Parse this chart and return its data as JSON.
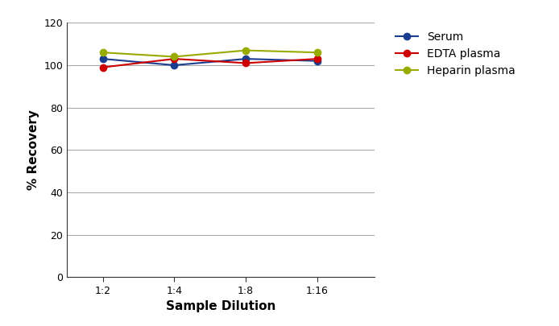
{
  "xlabel": "Sample Dilution",
  "ylabel": "% Recovery",
  "x_labels": [
    "1:2",
    "1:4",
    "1:8",
    "1:16"
  ],
  "x_values": [
    1,
    2,
    3,
    4
  ],
  "series": [
    {
      "label": "Serum",
      "color": "#1a3d8f",
      "values": [
        103,
        100,
        103,
        102
      ]
    },
    {
      "label": "EDTA plasma",
      "color": "#cc0000",
      "values": [
        99,
        103,
        101,
        103
      ]
    },
    {
      "label": "Heparin plasma",
      "color": "#99aa00",
      "values": [
        106,
        104,
        107,
        106
      ]
    }
  ],
  "ylim": [
    0,
    120
  ],
  "yticks": [
    0,
    20,
    40,
    60,
    80,
    100,
    120
  ],
  "background_color": "#ffffff",
  "grid_color": "#aaaaaa",
  "marker": "o",
  "marker_size": 6,
  "line_width": 1.5,
  "tick_fontsize": 9,
  "label_fontsize": 11
}
